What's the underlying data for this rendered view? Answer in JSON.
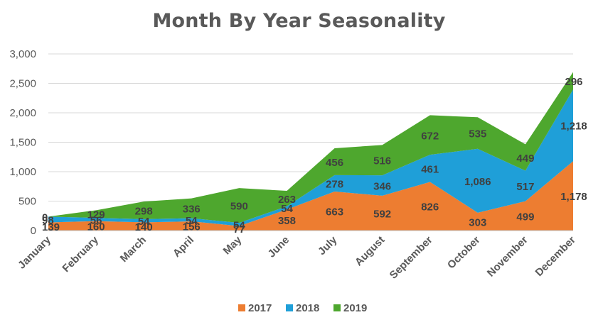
{
  "chart_data": {
    "type": "area",
    "stacked": true,
    "title": "Month By Year Seasonality",
    "xlabel": "",
    "ylabel": "",
    "categories": [
      "January",
      "February",
      "March",
      "April",
      "May",
      "June",
      "July",
      "August",
      "September",
      "October",
      "November",
      "December"
    ],
    "series": [
      {
        "name": "2017",
        "color": "#ED7D31",
        "values": [
          139,
          160,
          140,
          156,
          77,
          358,
          663,
          592,
          826,
          303,
          499,
          1178
        ]
      },
      {
        "name": "2018",
        "color": "#1F9FD8",
        "values": [
          98,
          56,
          54,
          54,
          54,
          54,
          278,
          346,
          461,
          1086,
          517,
          1218
        ]
      },
      {
        "name": "2019",
        "color": "#4EA72E",
        "values": [
          0,
          129,
          298,
          336,
          590,
          263,
          456,
          516,
          672,
          535,
          449,
          296
        ]
      }
    ],
    "ylim": [
      0,
      3000
    ],
    "yticks": [
      0,
      500,
      1000,
      1500,
      2000,
      2500,
      3000
    ],
    "ytick_labels": [
      "0",
      "500",
      "1,000",
      "1,500",
      "2,000",
      "2,500",
      "3,000"
    ],
    "data_labels": [
      [
        "139",
        "160",
        "140",
        "156",
        "77",
        "358",
        "663",
        "592",
        "826",
        "303",
        "499",
        "1,178"
      ],
      [
        "98",
        "56",
        "54",
        "54",
        "54",
        "54",
        "278",
        "346",
        "461",
        "1,086",
        "517",
        "1,218"
      ],
      [
        "0",
        "129",
        "298",
        "336",
        "590",
        "263",
        "456",
        "516",
        "672",
        "535",
        "449",
        "296"
      ]
    ],
    "grid": true,
    "legend_position": "bottom"
  }
}
